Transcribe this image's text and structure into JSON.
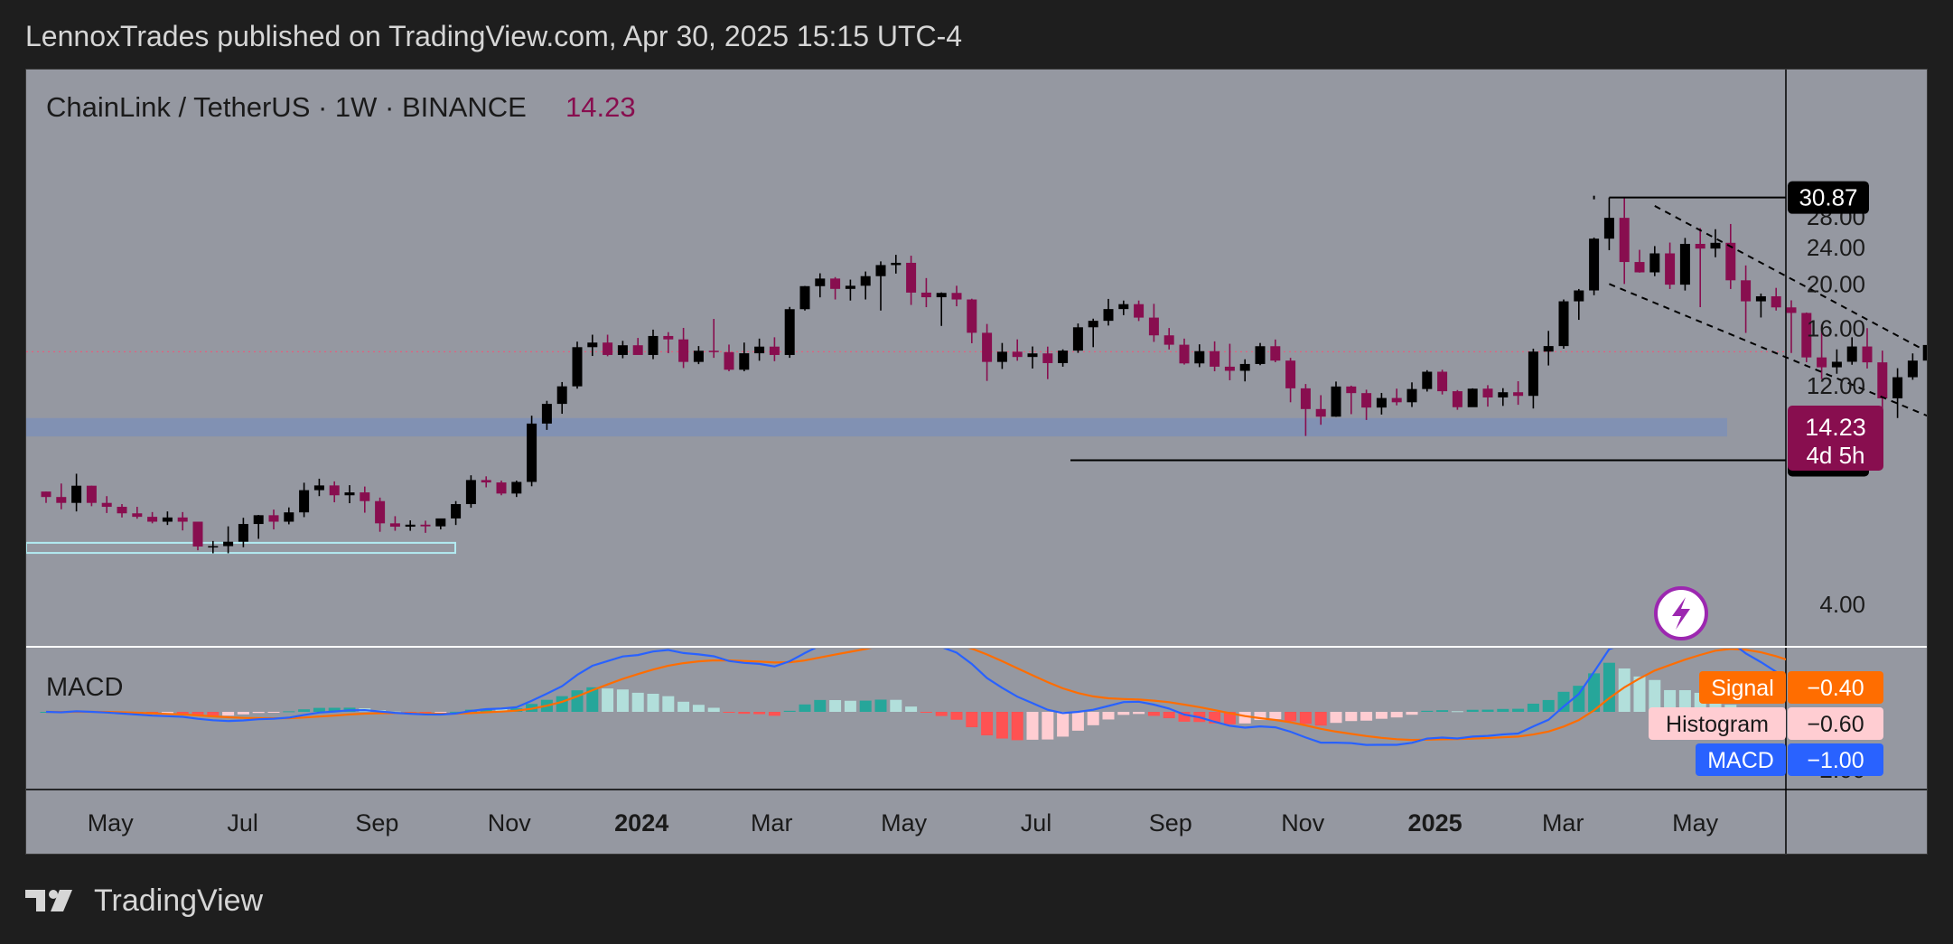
{
  "header": {
    "publisher": "LennoxTrades published on TradingView.com, Apr 30, 2025 15:15 UTC-4"
  },
  "legend": {
    "symbol": "ChainLink / TetherUS · 1W · BINANCE",
    "last_price": "14.23"
  },
  "price_panel": {
    "current_label": "14.23",
    "countdown_label": "4d 5h",
    "top_line_label": "30.87",
    "bottom_line_label": "8.25"
  },
  "macd_panel": {
    "title": "MACD",
    "legend": [
      {
        "name": "Signal",
        "value": "−0.40",
        "color": "#ff6d00"
      },
      {
        "name": "Histogram",
        "value": "−0.60",
        "color": "#ffcdd2"
      },
      {
        "name": "MACD",
        "value": "−1.00",
        "color": "#2962ff"
      }
    ]
  },
  "footer": {
    "brand": "TradingView"
  },
  "icons": {
    "flash": "lightning-bolt-icon",
    "logo": "tradingview-logo-icon"
  },
  "colors": {
    "background": "#9598a1",
    "bull_candle": "#000000",
    "bear_candle": "#880e4f",
    "support_zone": "#7e8fb6",
    "signal_line": "#ff6d00",
    "macd_line": "#2962ff",
    "hist_pos_strong": "#26a69a",
    "hist_pos_weak": "#b2dfdb",
    "hist_neg_strong": "#ff5252",
    "hist_neg_weak": "#ffcdd2"
  },
  "chart_data": [
    {
      "type": "candlestick",
      "title": "ChainLink / TetherUS · 1W · BINANCE",
      "yscale": "log",
      "y_ticks": [
        4.0,
        8.0,
        12.0,
        16.0,
        20.0,
        24.0,
        28.0
      ],
      "y_tick_labels": [
        "4.00",
        "8.00",
        "12.00",
        "16.00",
        "20.00",
        "24.00",
        "28.00"
      ],
      "x_tick_labels": [
        "May",
        "Jul",
        "Sep",
        "Nov",
        "2024",
        "Mar",
        "May",
        "Jul",
        "Sep",
        "Nov",
        "2025",
        "Mar",
        "May"
      ],
      "x_bold_labels": [
        "2024",
        "2025"
      ],
      "ylim": [
        3.7,
        34
      ],
      "start_week": "2023-04-03",
      "ohlc": [
        [
          7.05,
          7.05,
          6.66,
          6.86
        ],
        [
          6.86,
          7.34,
          6.45,
          6.66
        ],
        [
          6.66,
          7.71,
          6.38,
          7.26
        ],
        [
          7.26,
          7.26,
          6.55,
          6.66
        ],
        [
          6.66,
          6.89,
          6.33,
          6.53
        ],
        [
          6.53,
          6.62,
          6.19,
          6.32
        ],
        [
          6.32,
          6.53,
          6.15,
          6.21
        ],
        [
          6.21,
          6.36,
          6.01,
          6.06
        ],
        [
          6.06,
          6.38,
          5.96,
          6.19
        ],
        [
          6.19,
          6.36,
          5.8,
          6.06
        ],
        [
          6.06,
          6.06,
          5.25,
          5.35
        ],
        [
          5.35,
          5.5,
          5.17,
          5.36
        ],
        [
          5.36,
          5.92,
          5.17,
          5.48
        ],
        [
          5.48,
          6.18,
          5.33,
          5.99
        ],
        [
          5.99,
          6.27,
          5.56,
          6.26
        ],
        [
          6.26,
          6.44,
          5.83,
          6.06
        ],
        [
          6.06,
          6.51,
          5.98,
          6.35
        ],
        [
          6.35,
          7.37,
          6.2,
          7.1
        ],
        [
          7.1,
          7.52,
          6.89,
          7.27
        ],
        [
          7.27,
          7.42,
          6.68,
          6.92
        ],
        [
          6.92,
          7.28,
          6.65,
          7.02
        ],
        [
          7.02,
          7.23,
          6.34,
          6.72
        ],
        [
          6.72,
          6.84,
          5.76,
          6.01
        ],
        [
          6.01,
          6.23,
          5.79,
          5.91
        ],
        [
          5.91,
          6.1,
          5.79,
          5.97
        ],
        [
          5.97,
          6.09,
          5.73,
          5.92
        ],
        [
          5.92,
          6.15,
          5.83,
          6.16
        ],
        [
          6.16,
          6.72,
          5.96,
          6.62
        ],
        [
          6.62,
          7.65,
          6.5,
          7.47
        ],
        [
          7.47,
          7.61,
          7.2,
          7.38
        ],
        [
          7.38,
          7.45,
          6.92,
          6.98
        ],
        [
          6.98,
          7.45,
          6.86,
          7.4
        ],
        [
          7.4,
          10.32,
          7.24,
          9.92
        ],
        [
          9.92,
          11.12,
          9.61,
          10.95
        ],
        [
          10.95,
          12.22,
          10.42,
          11.96
        ],
        [
          11.96,
          14.97,
          11.82,
          14.56
        ],
        [
          14.56,
          15.5,
          13.93,
          14.9
        ],
        [
          14.9,
          15.5,
          13.91,
          14.0
        ],
        [
          14.0,
          15.03,
          13.77,
          14.7
        ],
        [
          14.7,
          15.25,
          14.04,
          14.0
        ],
        [
          14.0,
          15.9,
          13.71,
          15.4
        ],
        [
          15.4,
          15.7,
          14.13,
          15.14
        ],
        [
          15.14,
          16.04,
          13.11,
          13.52
        ],
        [
          13.52,
          14.64,
          13.37,
          14.3
        ],
        [
          14.3,
          16.78,
          13.8,
          14.2
        ],
        [
          14.2,
          14.75,
          12.9,
          13.0
        ],
        [
          13.0,
          14.9,
          12.9,
          14.12
        ],
        [
          14.12,
          15.2,
          13.6,
          14.6
        ],
        [
          14.6,
          15.3,
          13.57,
          14.0
        ],
        [
          14.0,
          17.82,
          13.8,
          17.62
        ],
        [
          17.62,
          19.8,
          17.5,
          19.78
        ],
        [
          19.78,
          21.1,
          18.7,
          20.55
        ],
        [
          20.55,
          20.7,
          18.5,
          19.51
        ],
        [
          19.51,
          20.44,
          18.4,
          19.82
        ],
        [
          19.82,
          21.29,
          18.5,
          20.8
        ],
        [
          20.8,
          22.4,
          17.5,
          21.99
        ],
        [
          21.99,
          23.15,
          21.07,
          22.24
        ],
        [
          22.24,
          23.05,
          18.0,
          19.15
        ],
        [
          19.15,
          20.6,
          17.8,
          18.71
        ],
        [
          18.71,
          19.17,
          16.2,
          19.12
        ],
        [
          19.12,
          19.82,
          17.88,
          18.5
        ],
        [
          18.5,
          18.57,
          14.85,
          15.65
        ],
        [
          15.65,
          16.36,
          12.29,
          13.52
        ],
        [
          13.52,
          14.87,
          13.05,
          14.23
        ],
        [
          14.23,
          15.14,
          13.6,
          13.86
        ],
        [
          13.86,
          14.61,
          13.08,
          14.11
        ],
        [
          14.11,
          14.6,
          12.4,
          13.44
        ],
        [
          13.44,
          14.4,
          13.2,
          14.31
        ],
        [
          14.31,
          16.4,
          14.15,
          16.09
        ],
        [
          16.09,
          16.8,
          14.56,
          16.62
        ],
        [
          16.62,
          18.55,
          16.23,
          17.63
        ],
        [
          17.63,
          18.4,
          17.1,
          18.07
        ],
        [
          18.07,
          18.4,
          16.6,
          16.89
        ],
        [
          16.89,
          18.1,
          14.95,
          15.45
        ],
        [
          15.45,
          16.03,
          14.39,
          14.74
        ],
        [
          14.74,
          15.2,
          13.34,
          13.42
        ],
        [
          13.42,
          14.77,
          13.17,
          14.27
        ],
        [
          14.27,
          14.99,
          12.9,
          13.2
        ],
        [
          13.2,
          14.81,
          12.33,
          12.93
        ],
        [
          12.93,
          13.7,
          12.26,
          13.38
        ],
        [
          13.38,
          14.87,
          13.3,
          14.63
        ],
        [
          14.63,
          15.13,
          13.5,
          13.61
        ],
        [
          13.61,
          13.8,
          11.04,
          11.84
        ],
        [
          11.84,
          12.1,
          9.32,
          10.67
        ],
        [
          10.67,
          11.44,
          9.86,
          10.27
        ],
        [
          10.27,
          12.25,
          10.26,
          11.95
        ],
        [
          11.95,
          12.0,
          10.4,
          11.56
        ],
        [
          11.56,
          11.76,
          10.1,
          10.75
        ],
        [
          10.75,
          11.57,
          10.38,
          11.28
        ],
        [
          11.28,
          11.82,
          10.87,
          11.04
        ],
        [
          11.04,
          12.2,
          10.78,
          11.8
        ],
        [
          11.8,
          12.97,
          11.65,
          12.87
        ],
        [
          12.87,
          13.0,
          11.48,
          11.67
        ],
        [
          11.67,
          11.74,
          10.63,
          10.77
        ],
        [
          10.77,
          11.84,
          10.79,
          11.82
        ],
        [
          11.82,
          12.03,
          10.8,
          11.31
        ],
        [
          11.31,
          11.85,
          10.84,
          11.61
        ],
        [
          11.61,
          12.27,
          10.9,
          11.4
        ],
        [
          11.4,
          14.45,
          10.7,
          14.24
        ],
        [
          14.24,
          15.8,
          13.28,
          14.64
        ],
        [
          14.64,
          18.5,
          14.45,
          18.33
        ],
        [
          18.33,
          19.5,
          16.7,
          19.36
        ],
        [
          19.36,
          25.25,
          18.9,
          25.11
        ],
        [
          25.11,
          30.87,
          23.7,
          27.88
        ],
        [
          27.88,
          30.87,
          20.0,
          22.33
        ],
        [
          22.33,
          23.74,
          21.17,
          21.2
        ],
        [
          21.2,
          24.19,
          20.8,
          23.32
        ],
        [
          23.32,
          24.62,
          19.5,
          19.93
        ],
        [
          19.93,
          25.2,
          19.35,
          24.46
        ],
        [
          24.46,
          26.47,
          17.8,
          23.89
        ],
        [
          23.89,
          26.33,
          22.87,
          24.59
        ],
        [
          24.59,
          27.03,
          19.5,
          20.37
        ],
        [
          20.37,
          21.95,
          15.64,
          18.33
        ],
        [
          18.33,
          19.06,
          16.9,
          18.8
        ],
        [
          18.8,
          19.61,
          17.5,
          17.78
        ],
        [
          17.78,
          18.42,
          14.14,
          17.29
        ],
        [
          17.29,
          17.33,
          13.5,
          13.83
        ],
        [
          13.83,
          16.3,
          12.4,
          13.16
        ],
        [
          13.16,
          14.4,
          12.74,
          13.53
        ],
        [
          13.53,
          15.3,
          13.33,
          14.61
        ],
        [
          14.61,
          16.02,
          13.08,
          13.49
        ],
        [
          13.49,
          14.31,
          10.18,
          11.26
        ],
        [
          11.26,
          13.1,
          10.2,
          12.52
        ],
        [
          12.52,
          14.11,
          12.36,
          13.61
        ],
        [
          13.61,
          15.46,
          12.9,
          14.72
        ],
        [
          14.72,
          15.4,
          14.07,
          14.23
        ]
      ]
    },
    {
      "type": "line+histogram",
      "title": "MACD",
      "series": [
        {
          "name": "MACD",
          "color": "#2962ff"
        },
        {
          "name": "Signal",
          "color": "#ff6d00"
        },
        {
          "name": "Histogram",
          "color": "#26a69a / #ff5252"
        }
      ],
      "last_values": {
        "Signal": -0.4,
        "Histogram": -0.6,
        "MACD": -1.0
      }
    }
  ]
}
